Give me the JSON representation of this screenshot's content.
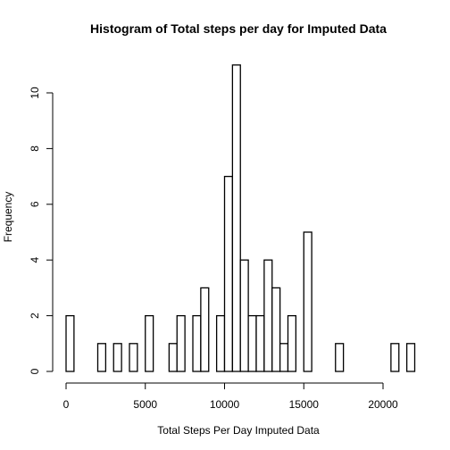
{
  "chart_data": {
    "type": "bar",
    "title": "Histogram of Total steps per day for Imputed Data",
    "xlabel": "Total Steps Per Day Imputed Data",
    "ylabel": "Frequency",
    "bin_width": 500,
    "x_start": 0,
    "counts": [
      2,
      0,
      0,
      0,
      1,
      0,
      1,
      0,
      1,
      0,
      2,
      0,
      0,
      1,
      2,
      0,
      2,
      3,
      0,
      2,
      7,
      11,
      4,
      2,
      2,
      4,
      3,
      1,
      2,
      0,
      5,
      0,
      0,
      0,
      1,
      0,
      0,
      0,
      0,
      0,
      0,
      1,
      0,
      1
    ],
    "xlim": [
      0,
      22000
    ],
    "ylim": [
      0,
      11
    ],
    "x_ticks": [
      "0",
      "5000",
      "10000",
      "15000",
      "20000"
    ],
    "y_ticks": [
      "0",
      "2",
      "4",
      "6",
      "8",
      "10"
    ],
    "grid": false,
    "bar_fill": "#ffffff",
    "bar_stroke": "#000000"
  }
}
